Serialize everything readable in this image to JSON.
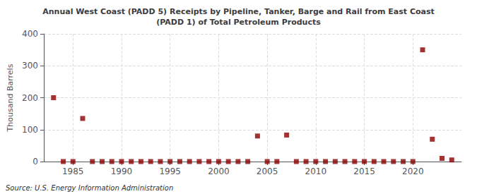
{
  "chart_data": {
    "type": "scatter",
    "title": "Annual West Coast (PADD 5) Receipts by Pipeline, Tanker, Barge and Rail from East Coast\n(PADD 1) of Total Petroleum Products",
    "ylabel": "Thousand Barrels",
    "source": "Source: U.S. Energy Information Administration",
    "color": "#8b0000",
    "marker": "square",
    "grid": true,
    "xlim": [
      1982,
      2025
    ],
    "ylim": [
      0,
      400
    ],
    "xticks": [
      1985,
      1990,
      1995,
      2000,
      2005,
      2010,
      2015,
      2020
    ],
    "yticks": [
      0,
      100,
      200,
      300,
      400
    ],
    "x": [
      1983,
      1984,
      1985,
      1986,
      1987,
      1988,
      1989,
      1990,
      1991,
      1992,
      1993,
      1994,
      1995,
      1996,
      1997,
      1998,
      1999,
      2000,
      2001,
      2002,
      2003,
      2004,
      2005,
      2006,
      2007,
      2008,
      2009,
      2010,
      2011,
      2012,
      2013,
      2014,
      2015,
      2016,
      2017,
      2018,
      2019,
      2020,
      2021,
      2022,
      2023,
      2024
    ],
    "values": [
      200,
      0,
      0,
      135,
      0,
      0,
      0,
      0,
      0,
      0,
      0,
      0,
      0,
      0,
      0,
      0,
      0,
      0,
      0,
      0,
      0,
      80,
      0,
      0,
      83,
      0,
      0,
      0,
      0,
      0,
      0,
      0,
      0,
      0,
      0,
      0,
      0,
      0,
      350,
      70,
      10,
      5
    ]
  }
}
